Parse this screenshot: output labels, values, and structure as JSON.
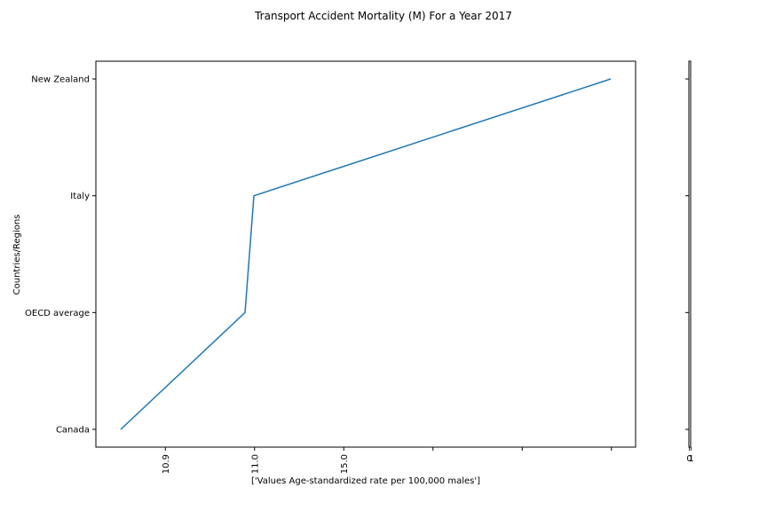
{
  "chart_data": {
    "type": "line",
    "title": "Transport Accident Mortality (M) For a Year 2017",
    "xlabel": "['Values Age-standardized rate per 100,000 males']",
    "ylabel": "Countries/Regions",
    "categories": [
      "Canada",
      "OECD average",
      "Italy",
      "New Zealand"
    ],
    "x_tick_labels": [
      "10.9",
      "11.0",
      "15.0",
      "",
      "",
      ""
    ],
    "series": [
      {
        "values": [
          "10.8",
          "10.9",
          "11.0",
          "15.0"
        ]
      }
    ],
    "side_axis": {
      "tick_labels": [
        "0",
        "1"
      ]
    },
    "grid": false,
    "colors": {
      "line": "#1f77b4"
    }
  }
}
